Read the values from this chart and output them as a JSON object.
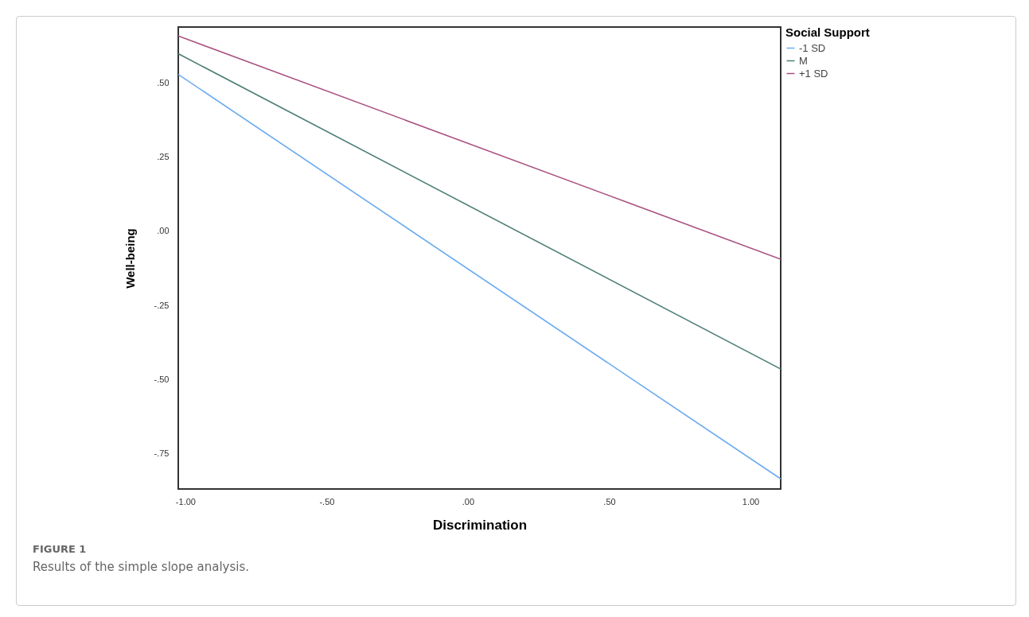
{
  "chart_data": {
    "type": "line",
    "xlabel": "Discrimination",
    "ylabel": "Well-being",
    "legend_title": "Social Support",
    "legend": "top right",
    "grid": false,
    "marker": "none",
    "xlim": [
      -1.025,
      1.107
    ],
    "ylim": [
      -0.87,
      0.69
    ],
    "xticks": [
      {
        "value": -1,
        "label": "-1.00"
      },
      {
        "value": -0.5,
        "label": "-.50"
      },
      {
        "value": 0,
        "label": ".00"
      },
      {
        "value": 0.5,
        "label": ".50"
      },
      {
        "value": 1,
        "label": "1.00"
      }
    ],
    "yticks": [
      {
        "value": -0.75,
        "label": "-.75"
      },
      {
        "value": -0.5,
        "label": "-.50"
      },
      {
        "value": -0.25,
        "label": "-.25"
      },
      {
        "value": 0,
        "label": ".00"
      },
      {
        "value": 0.25,
        "label": ".25"
      },
      {
        "value": 0.5,
        "label": ".50"
      }
    ],
    "x": [
      -1.025,
      1.107
    ],
    "series": [
      {
        "name": "-1 SD",
        "color": "#6aaaf0",
        "values": [
          0.53,
          -0.836
        ]
      },
      {
        "name": "M",
        "color": "#4e7f78",
        "values": [
          0.6,
          -0.465
        ]
      },
      {
        "name": "+1 SD",
        "color": "#a94f7f",
        "values": [
          0.66,
          -0.094
        ]
      }
    ],
    "annotations": [
      "FIGURE 1",
      "Results of the simple slope analysis."
    ]
  }
}
